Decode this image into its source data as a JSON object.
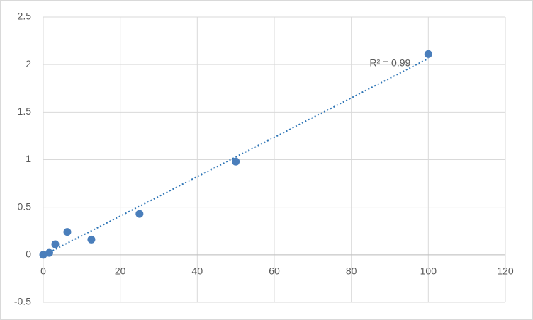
{
  "chart_data": {
    "type": "scatter",
    "series": [
      {
        "color": "#4a7ebb",
        "x": [
          0,
          1.56,
          3.125,
          6.25,
          12.5,
          25,
          50,
          100
        ],
        "values": [
          0,
          0.02,
          0.11,
          0.24,
          0.16,
          0.43,
          0.98,
          2.11
        ]
      }
    ],
    "trendline": {
      "type": "linear",
      "color": "#2e75b6",
      "label": "R² = 0.99"
    },
    "xlim": [
      0,
      120
    ],
    "xticks": [
      0,
      20,
      40,
      60,
      80,
      100,
      120
    ],
    "ylim": [
      -0.5,
      2.5
    ],
    "yticks": [
      2.5,
      2,
      1.5,
      1,
      0.5,
      0,
      -0.5
    ],
    "grid": true
  }
}
